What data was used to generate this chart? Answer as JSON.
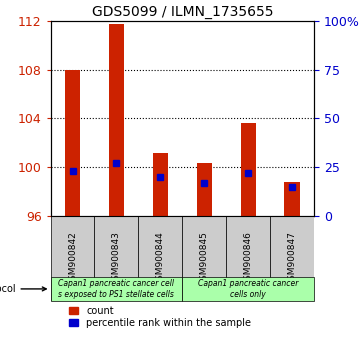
{
  "title": "GDS5099 / ILMN_1735655",
  "samples": [
    "GSM900842",
    "GSM900843",
    "GSM900844",
    "GSM900845",
    "GSM900846",
    "GSM900847"
  ],
  "count_values": [
    108.0,
    111.8,
    101.2,
    100.3,
    103.6,
    98.8
  ],
  "percentile_values": [
    23.0,
    27.0,
    20.0,
    17.0,
    22.0,
    15.0
  ],
  "count_base": 96,
  "ylim_left": [
    96,
    112
  ],
  "ylim_right": [
    0,
    100
  ],
  "yticks_left": [
    96,
    100,
    104,
    108,
    112
  ],
  "yticks_right": [
    0,
    25,
    50,
    75,
    100
  ],
  "yticklabels_right": [
    "0",
    "25",
    "50",
    "75",
    "100%"
  ],
  "bar_color": "#cc2200",
  "percentile_color": "#0000cc",
  "grid_color": "#000000",
  "protocol_groups": [
    {
      "label": "Capan1 pancreatic cancer cell\ns exposed to PS1 stellate cells",
      "samples": [
        "GSM900842",
        "GSM900843",
        "GSM900844"
      ],
      "color": "#aaffaa"
    },
    {
      "label": "Capan1 pancreatic cancer\ncells only",
      "samples": [
        "GSM900845",
        "GSM900846",
        "GSM900847"
      ],
      "color": "#aaffaa"
    }
  ],
  "legend_items": [
    {
      "label": "count",
      "color": "#cc2200",
      "marker": "s"
    },
    {
      "label": "percentile rank within the sample",
      "color": "#0000cc",
      "marker": "s"
    }
  ],
  "background_color": "#ffffff",
  "plot_bg": "#ffffff",
  "label_area_color": "#cccccc"
}
